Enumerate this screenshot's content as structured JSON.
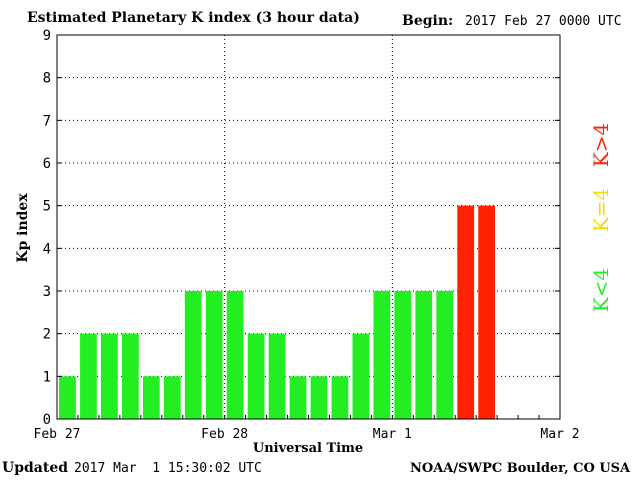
{
  "header": {
    "title": "Estimated Planetary K index (3 hour data)",
    "begin_label": "Begin:",
    "begin_value": "2017 Feb 27 0000 UTC"
  },
  "footer": {
    "updated_label": "Updated",
    "updated_value": "2017 Mar  1 15:30:02 UTC",
    "credit": "NOAA/SWPC Boulder, CO USA"
  },
  "chart_data": {
    "type": "bar",
    "title": "Estimated Planetary K index (3 hour data)",
    "xlabel": "Universal Time",
    "ylabel": "Kp index",
    "ylim": [
      0,
      9
    ],
    "yticks": [
      0,
      1,
      2,
      3,
      4,
      5,
      6,
      7,
      8,
      9
    ],
    "x_range": [
      "2017-02-27 00:00 UTC",
      "2017-03-02 00:00 UTC"
    ],
    "bar_interval_hours": 3,
    "xtick_labels": [
      "Feb 27",
      "Feb 28",
      "Mar 1",
      "Mar 2"
    ],
    "grid": true,
    "bar_times": [
      "2017-02-27 00:00",
      "2017-02-27 03:00",
      "2017-02-27 06:00",
      "2017-02-27 09:00",
      "2017-02-27 12:00",
      "2017-02-27 15:00",
      "2017-02-27 18:00",
      "2017-02-27 21:00",
      "2017-02-28 00:00",
      "2017-02-28 03:00",
      "2017-02-28 06:00",
      "2017-02-28 09:00",
      "2017-02-28 12:00",
      "2017-02-28 15:00",
      "2017-02-28 18:00",
      "2017-02-28 21:00",
      "2017-03-01 00:00",
      "2017-03-01 03:00",
      "2017-03-01 06:00",
      "2017-03-01 09:00",
      "2017-03-01 12:00"
    ],
    "values": [
      1,
      2,
      2,
      2,
      1,
      1,
      3,
      3,
      3,
      2,
      2,
      1,
      1,
      1,
      2,
      3,
      3,
      3,
      3,
      5,
      5
    ],
    "legend": [
      {
        "label": "K<4",
        "color": "#22ee22"
      },
      {
        "label": "K=4",
        "color": "#eedd00"
      },
      {
        "label": "K>4",
        "color": "#ff2200"
      }
    ],
    "legend_position": "right",
    "colors": {
      "low": "#22ee22",
      "equal": "#eedd00",
      "high": "#ff2200",
      "grid": "#000000"
    }
  }
}
